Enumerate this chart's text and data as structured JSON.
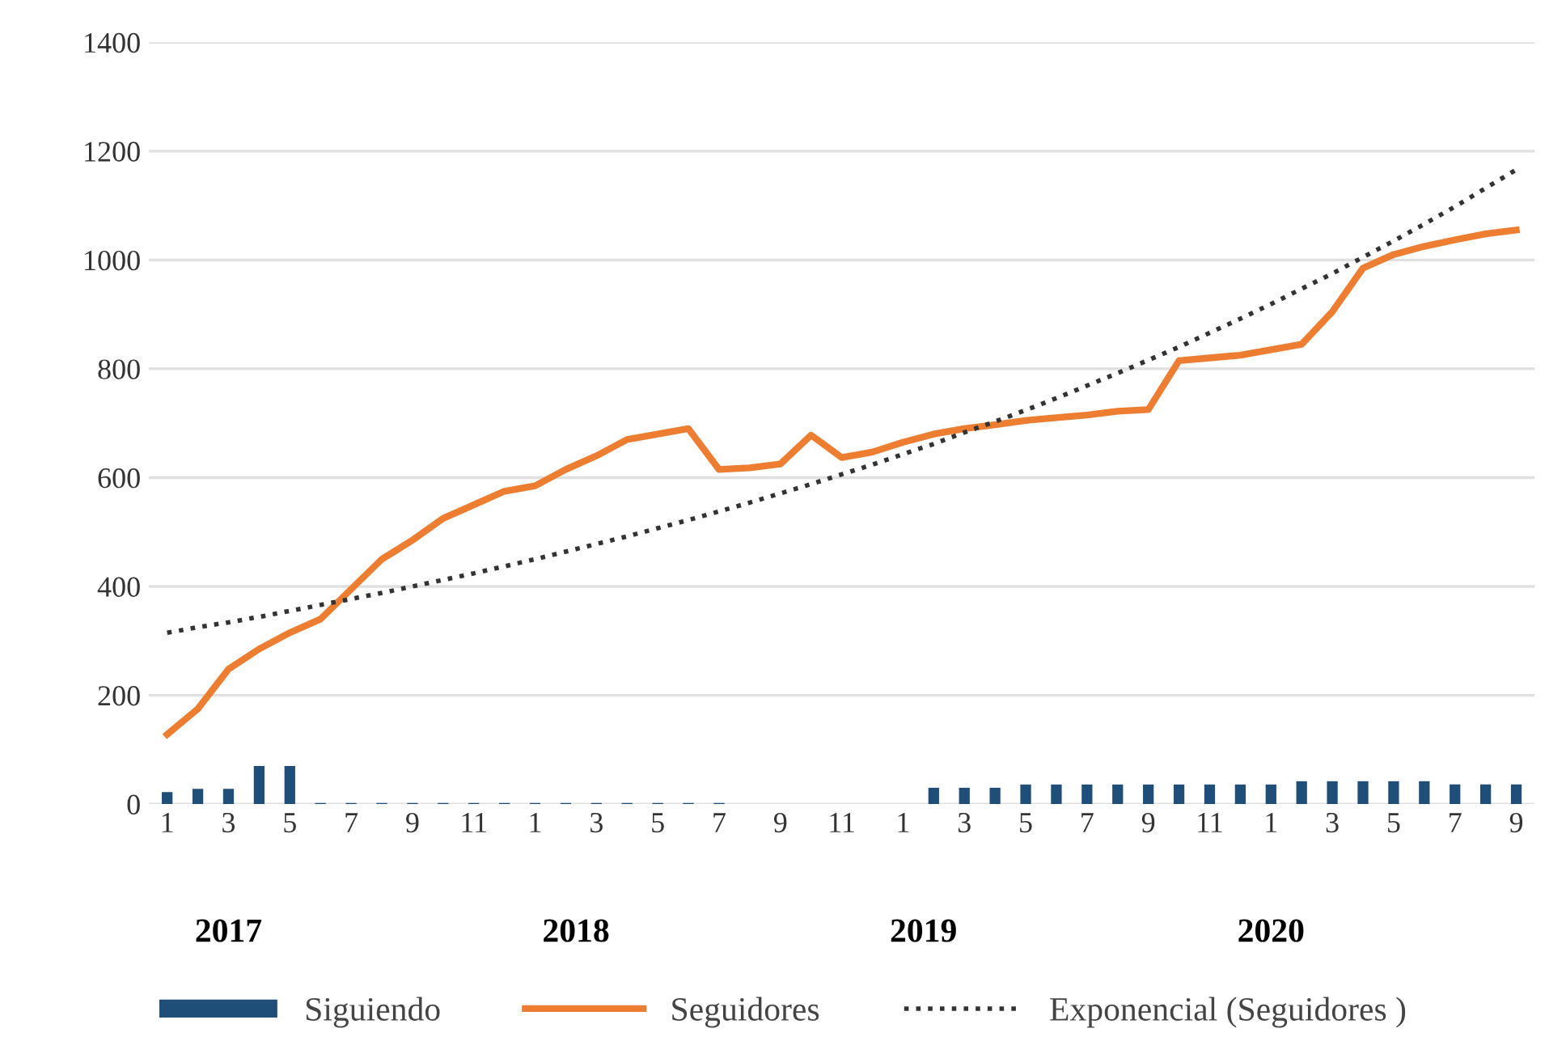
{
  "chart_data": {
    "type": "bar",
    "categories": [
      "1",
      null,
      "3",
      null,
      "5",
      null,
      "7",
      null,
      "9",
      null,
      "11",
      null,
      "1",
      null,
      "3",
      null,
      "5",
      null,
      "7",
      null,
      "9",
      null,
      "11",
      null,
      "1",
      null,
      "3",
      null,
      "5",
      null,
      "7",
      null,
      "9",
      null,
      "11",
      null,
      "1",
      null,
      "3",
      null,
      "5",
      null,
      "7",
      null,
      "9"
    ],
    "series": [
      {
        "name": "Siguiendo",
        "color": "#1f4e79",
        "values": [
          22,
          28,
          28,
          70,
          70,
          2,
          2,
          2,
          2,
          2,
          2,
          2,
          2,
          2,
          2,
          2,
          2,
          2,
          2,
          null,
          null,
          null,
          null,
          null,
          null,
          30,
          30,
          30,
          36,
          36,
          36,
          36,
          36,
          36,
          36,
          36,
          36,
          42,
          42,
          42,
          42,
          42,
          36,
          36,
          36
        ]
      },
      {
        "name": "Seguidores",
        "type": "line",
        "color": "#ed7d31",
        "line_style": "solid",
        "values": [
          128,
          175,
          248,
          285,
          315,
          340,
          395,
          450,
          485,
          525,
          550,
          575,
          585,
          615,
          640,
          670,
          680,
          690,
          615,
          618,
          625,
          678,
          637,
          647,
          665,
          680,
          690,
          697,
          705,
          710,
          715,
          722,
          725,
          815,
          820,
          825,
          835,
          845,
          905,
          985,
          1010,
          1025,
          1037,
          1048,
          1055
        ]
      },
      {
        "name": "Exponencial (Seguidores )",
        "type": "line",
        "color": "#333333",
        "line_style": "dotted",
        "values": [
          315,
          325,
          334,
          344,
          355,
          366,
          377,
          388,
          400,
          412,
          424,
          437,
          450,
          464,
          478,
          492,
          507,
          522,
          538,
          554,
          571,
          588,
          606,
          624,
          643,
          662,
          683,
          703,
          724,
          746,
          769,
          792,
          816,
          840,
          866,
          892,
          919,
          947,
          975,
          1005,
          1035,
          1066,
          1098,
          1132,
          1166
        ]
      }
    ],
    "ylim": [
      0,
      1400
    ],
    "yticks": [
      0,
      200,
      400,
      600,
      800,
      1000,
      1200,
      1400
    ],
    "grid": "y",
    "legend": "bottom",
    "annotations": [
      "2017",
      "2018",
      "2019",
      "2020"
    ]
  }
}
